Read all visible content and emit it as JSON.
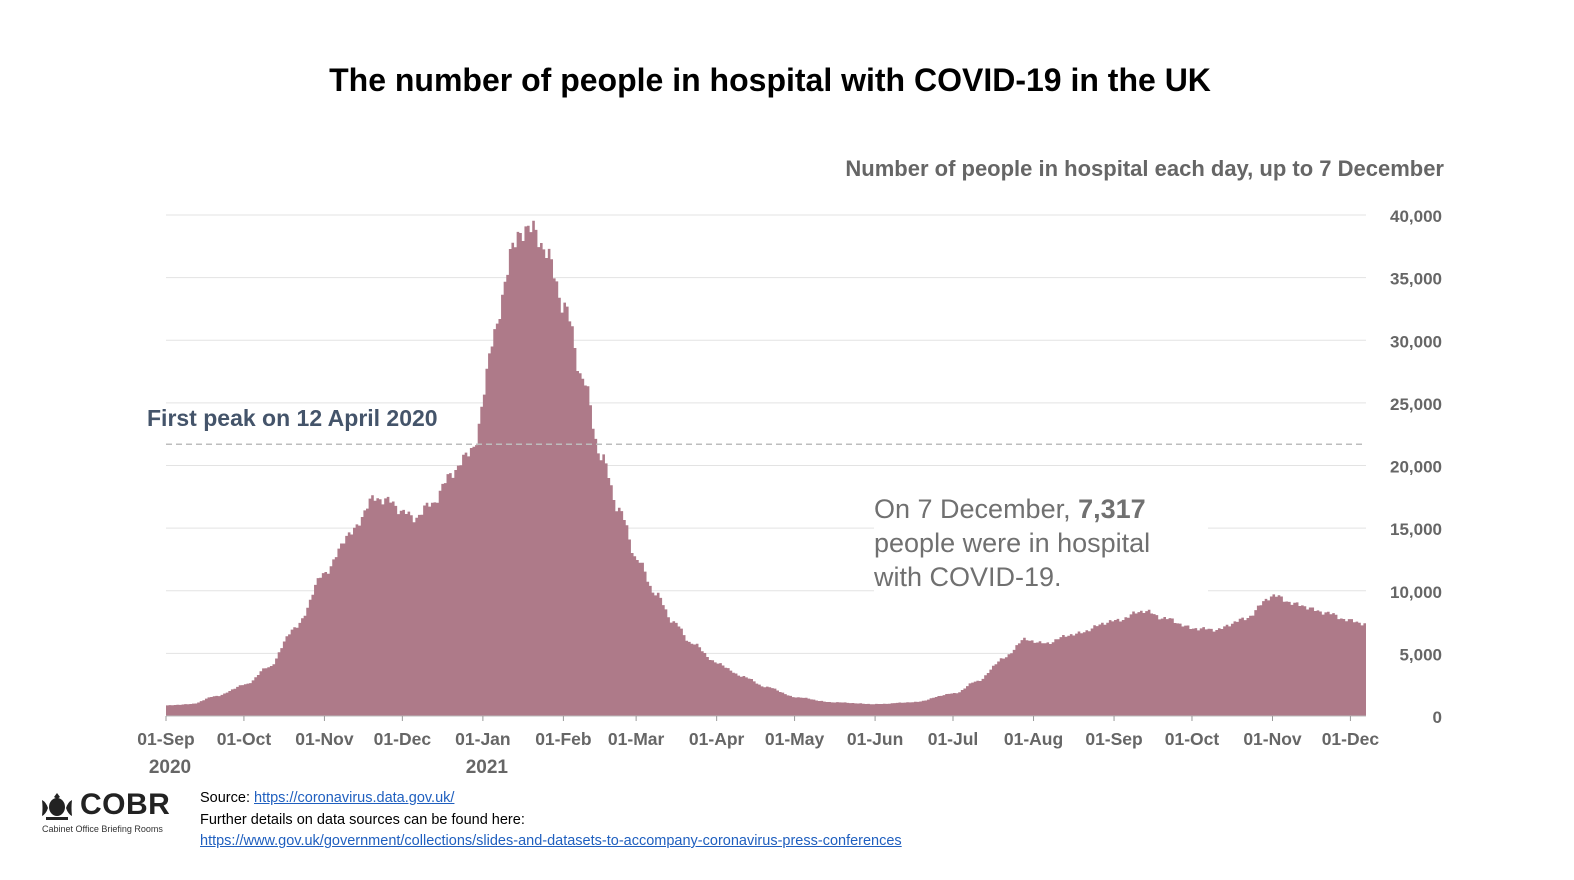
{
  "title": "The number of people in hospital with COVID-19 in the UK",
  "subtitle": "Number of people in hospital each day, up to 7 December",
  "first_peak_label": "First peak on 12 April 2020",
  "annotation": {
    "line1_prefix": "On 7 December, ",
    "value": "7,317",
    "line2": "people were in hospital",
    "line3": "with COVID-19."
  },
  "footer": {
    "source_label": "Source: ",
    "source_link": "https://coronavirus.data.gov.uk/",
    "details_text": "Further details on data sources can be found here:",
    "details_link": "https://www.gov.uk/government/collections/slides-and-datasets-to-accompany-coronavirus-press-conferences"
  },
  "logo": {
    "word": "COBR",
    "subtitle": "Cabinet Office Briefing Rooms"
  },
  "colors": {
    "area": "#ae7a89",
    "grid": "#e3e3e3",
    "reference_line": "#bdbdbd",
    "tick_text": "#666666",
    "peak_text": "#44546a"
  },
  "chart_data": {
    "type": "area",
    "title": "The number of people in hospital with COVID-19 in the UK",
    "subtitle": "Number of people in hospital each day, up to 7 December",
    "x_start": "2020-09-01",
    "x_end": "2021-12-07",
    "x_tick_labels": [
      "01-Sep",
      "01-Oct",
      "01-Nov",
      "01-Dec",
      "01-Jan",
      "01-Feb",
      "01-Mar",
      "01-Apr",
      "01-May",
      "01-Jun",
      "01-Jul",
      "01-Aug",
      "01-Sep",
      "01-Oct",
      "01-Nov",
      "01-Dec"
    ],
    "x_tick_dates": [
      "2020-09-01",
      "2020-10-01",
      "2020-11-01",
      "2020-12-01",
      "2021-01-01",
      "2021-02-01",
      "2021-03-01",
      "2021-04-01",
      "2021-05-01",
      "2021-06-01",
      "2021-07-01",
      "2021-08-01",
      "2021-09-01",
      "2021-10-01",
      "2021-11-01",
      "2021-12-01"
    ],
    "year_labels": [
      {
        "text": "2020",
        "date": "2020-09-01"
      },
      {
        "text": "2021",
        "date": "2021-01-01"
      }
    ],
    "y_ticks": [
      0,
      5000,
      10000,
      15000,
      20000,
      25000,
      30000,
      35000,
      40000
    ],
    "y_tick_labels": [
      "0",
      "5,000",
      "10,000",
      "15,000",
      "20,000",
      "25,000",
      "30,000",
      "35,000",
      "40,000"
    ],
    "ylim": [
      0,
      40000
    ],
    "grid": true,
    "reference_line": {
      "label": "First peak on 12 April 2020",
      "value": 21700
    },
    "series": [
      {
        "values_by_date": [
          [
            "2020-09-01",
            850
          ],
          [
            "2020-09-10",
            950
          ],
          [
            "2020-09-20",
            1600
          ],
          [
            "2020-10-01",
            2500
          ],
          [
            "2020-10-10",
            3900
          ],
          [
            "2020-10-20",
            7000
          ],
          [
            "2020-11-01",
            11500
          ],
          [
            "2020-11-10",
            14500
          ],
          [
            "2020-11-20",
            17400
          ],
          [
            "2020-11-25",
            17200
          ],
          [
            "2020-12-01",
            16300
          ],
          [
            "2020-12-05",
            15800
          ],
          [
            "2020-12-12",
            17000
          ],
          [
            "2020-12-20",
            19500
          ],
          [
            "2020-12-28",
            21500
          ],
          [
            "2021-01-05",
            30500
          ],
          [
            "2021-01-12",
            37500
          ],
          [
            "2021-01-18",
            39200
          ],
          [
            "2021-01-24",
            37500
          ],
          [
            "2021-02-01",
            32800
          ],
          [
            "2021-02-08",
            27000
          ],
          [
            "2021-02-15",
            20800
          ],
          [
            "2021-02-22",
            16500
          ],
          [
            "2021-03-01",
            12500
          ],
          [
            "2021-03-08",
            9800
          ],
          [
            "2021-03-15",
            7500
          ],
          [
            "2021-03-22",
            5800
          ],
          [
            "2021-04-01",
            4200
          ],
          [
            "2021-04-10",
            3200
          ],
          [
            "2021-04-20",
            2300
          ],
          [
            "2021-05-01",
            1500
          ],
          [
            "2021-05-15",
            1100
          ],
          [
            "2021-06-01",
            950
          ],
          [
            "2021-06-15",
            1100
          ],
          [
            "2021-07-01",
            1800
          ],
          [
            "2021-07-10",
            2800
          ],
          [
            "2021-07-20",
            4600
          ],
          [
            "2021-07-28",
            6100
          ],
          [
            "2021-08-05",
            5800
          ],
          [
            "2021-08-15",
            6500
          ],
          [
            "2021-09-01",
            7600
          ],
          [
            "2021-09-12",
            8400
          ],
          [
            "2021-09-20",
            7800
          ],
          [
            "2021-10-01",
            7000
          ],
          [
            "2021-10-10",
            6900
          ],
          [
            "2021-10-20",
            7700
          ],
          [
            "2021-11-01",
            9600
          ],
          [
            "2021-11-10",
            8900
          ],
          [
            "2021-11-20",
            8300
          ],
          [
            "2021-12-01",
            7600
          ],
          [
            "2021-12-07",
            7317
          ]
        ]
      }
    ]
  }
}
